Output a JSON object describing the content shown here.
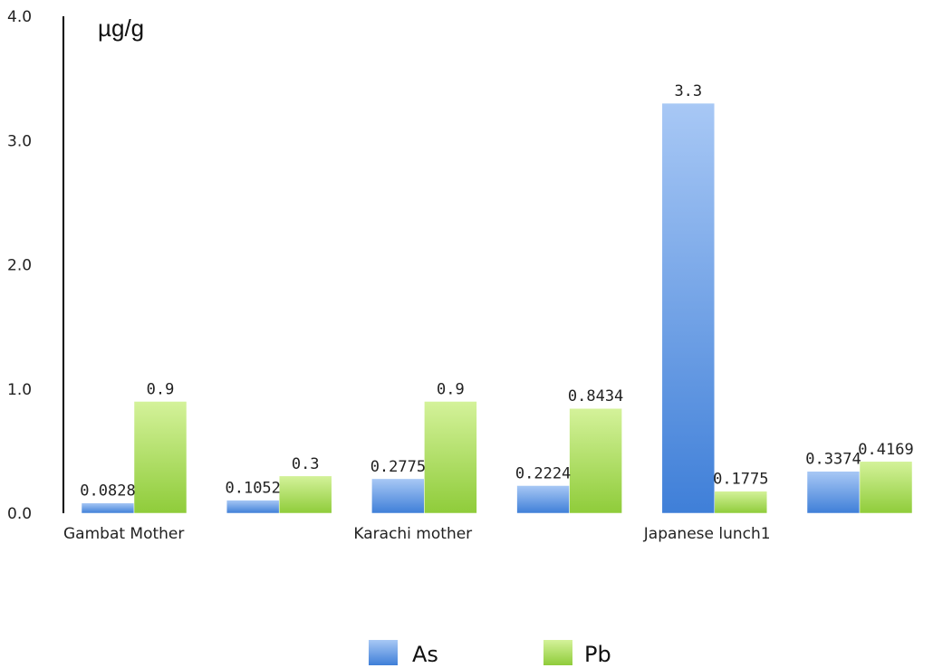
{
  "chart_data": {
    "type": "bar",
    "unit_label": "µg/g",
    "categories": [
      "Gambat Mother",
      "",
      "Karachi mother",
      "",
      "Japanese lunch1",
      ""
    ],
    "series": [
      {
        "name": "As",
        "color": "#5b8fe0",
        "values": [
          0.0828,
          0.1052,
          0.2775,
          0.2224,
          3.3,
          0.3374
        ],
        "labels": [
          "0.0828",
          "0.1052",
          "0.2775",
          "0.2224",
          "3.3",
          "0.3374"
        ]
      },
      {
        "name": "Pb",
        "color": "#93d03f",
        "values": [
          0.9,
          0.3,
          0.9,
          0.8434,
          0.1775,
          0.4169
        ],
        "labels": [
          "0.9",
          "0.3",
          "0.9",
          "0.8434",
          "0.1775",
          "0.4169"
        ]
      }
    ],
    "ylim": [
      0,
      4.0
    ],
    "yticks": [
      "0.0",
      "1.0",
      "2.0",
      "3.0",
      "4.0"
    ],
    "grid": false,
    "legend_position": "bottom-center"
  }
}
